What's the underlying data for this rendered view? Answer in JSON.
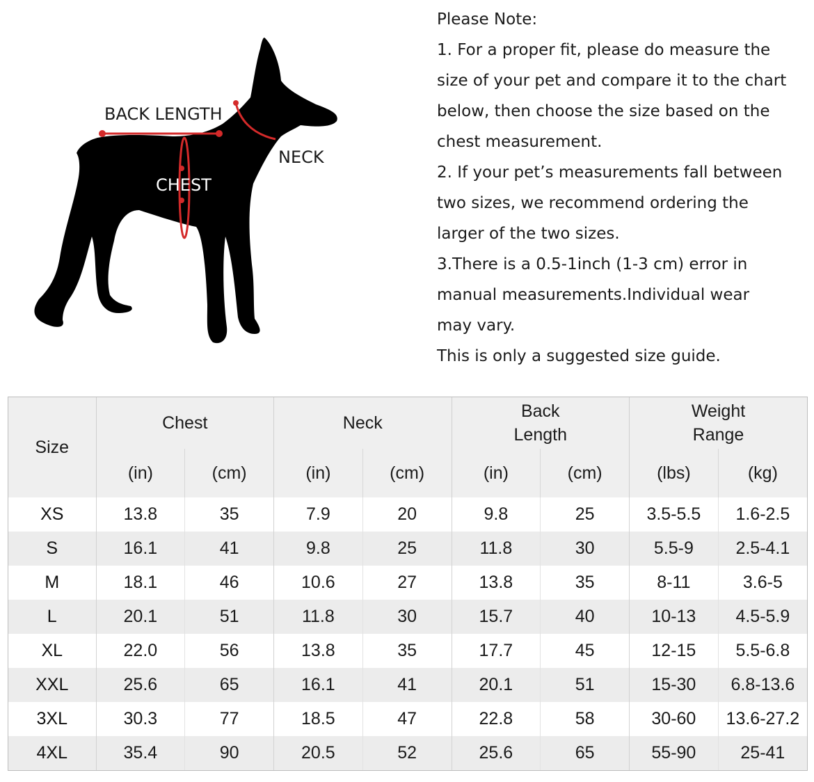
{
  "figure": {
    "labels": {
      "back_length": "BACK LENGTH",
      "neck": "NECK",
      "chest": "CHEST"
    },
    "colors": {
      "silhouette": "#000000",
      "measure_line": "#d42a2a"
    }
  },
  "note": {
    "lines": [
      "Please Note:",
      "1. For a proper fit, please do measure the",
      "size of your pet and compare it to the chart",
      "below, then choose the size based on the",
      "chest measurement.",
      "2. If your pet’s measurements fall between",
      "two sizes, we recommend ordering the",
      "larger of the two sizes.",
      "3.There is a 0.5-1inch (1-3 cm) error in",
      "manual measurements.Individual wear",
      "may vary.",
      "This is only a suggested size guide."
    ]
  },
  "table": {
    "size_header": "Size",
    "groups": [
      {
        "label_lines": [
          "Chest"
        ],
        "units": [
          "(in)",
          "(cm)"
        ]
      },
      {
        "label_lines": [
          "Neck"
        ],
        "units": [
          "(in)",
          "(cm)"
        ]
      },
      {
        "label_lines": [
          "Back",
          "Length"
        ],
        "units": [
          "(in)",
          "(cm)"
        ]
      },
      {
        "label_lines": [
          "Weight",
          "Range"
        ],
        "units": [
          "(lbs)",
          "(kg)"
        ]
      }
    ],
    "rows": [
      {
        "size": "XS",
        "chest_in": "13.8",
        "chest_cm": "35",
        "neck_in": "7.9",
        "neck_cm": "20",
        "back_in": "9.8",
        "back_cm": "25",
        "weight_lbs": "3.5-5.5",
        "weight_kg": "1.6-2.5"
      },
      {
        "size": "S",
        "chest_in": "16.1",
        "chest_cm": "41",
        "neck_in": "9.8",
        "neck_cm": "25",
        "back_in": "11.8",
        "back_cm": "30",
        "weight_lbs": "5.5-9",
        "weight_kg": "2.5-4.1"
      },
      {
        "size": "M",
        "chest_in": "18.1",
        "chest_cm": "46",
        "neck_in": "10.6",
        "neck_cm": "27",
        "back_in": "13.8",
        "back_cm": "35",
        "weight_lbs": "8-11",
        "weight_kg": "3.6-5"
      },
      {
        "size": "L",
        "chest_in": "20.1",
        "chest_cm": "51",
        "neck_in": "11.8",
        "neck_cm": "30",
        "back_in": "15.7",
        "back_cm": "40",
        "weight_lbs": "10-13",
        "weight_kg": "4.5-5.9"
      },
      {
        "size": "XL",
        "chest_in": "22.0",
        "chest_cm": "56",
        "neck_in": "13.8",
        "neck_cm": "35",
        "back_in": "17.7",
        "back_cm": "45",
        "weight_lbs": "12-15",
        "weight_kg": "5.5-6.8"
      },
      {
        "size": "XXL",
        "chest_in": "25.6",
        "chest_cm": "65",
        "neck_in": "16.1",
        "neck_cm": "41",
        "back_in": "20.1",
        "back_cm": "51",
        "weight_lbs": "15-30",
        "weight_kg": "6.8-13.6"
      },
      {
        "size": "3XL",
        "chest_in": "30.3",
        "chest_cm": "77",
        "neck_in": "18.5",
        "neck_cm": "47",
        "back_in": "22.8",
        "back_cm": "58",
        "weight_lbs": "30-60",
        "weight_kg": "13.6-27.2"
      },
      {
        "size": "4XL",
        "chest_in": "35.4",
        "chest_cm": "90",
        "neck_in": "20.5",
        "neck_cm": "52",
        "back_in": "25.6",
        "back_cm": "65",
        "weight_lbs": "55-90",
        "weight_kg": "25-41"
      }
    ],
    "colors": {
      "imperial": "#e8853a",
      "metric": "#4f86db",
      "header_bg": "#efefef",
      "stripe_bg": "#ececec"
    }
  }
}
